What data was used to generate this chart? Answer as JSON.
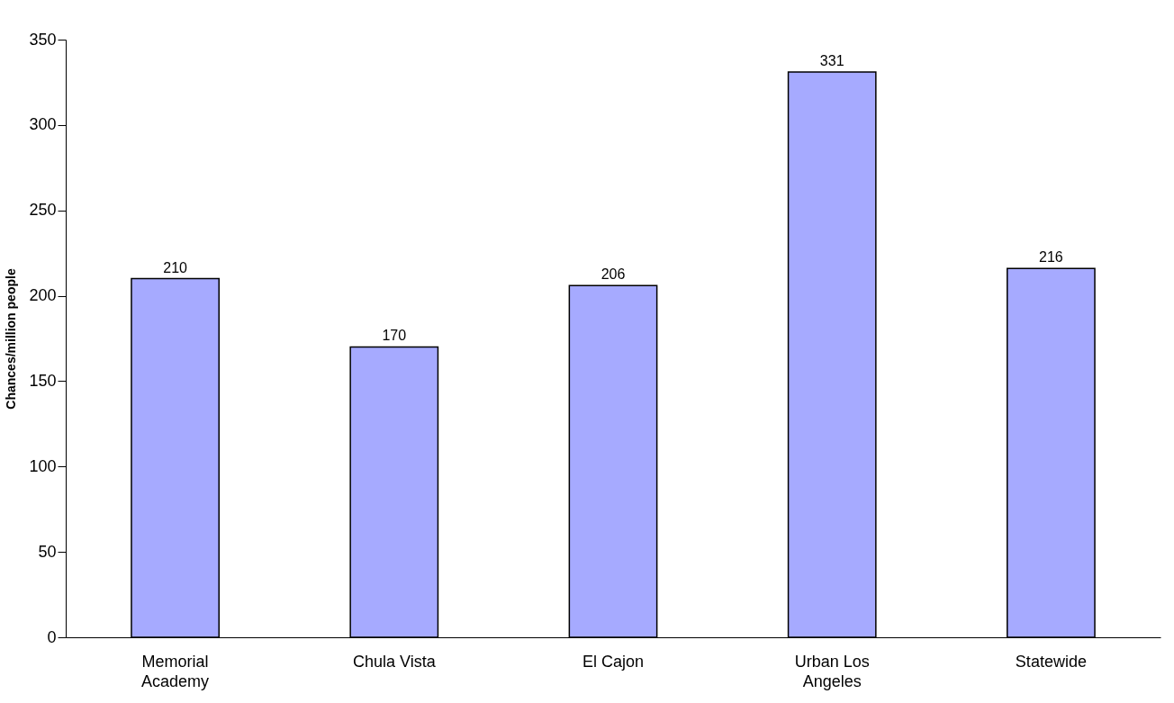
{
  "chart_data": {
    "type": "bar",
    "ylabel": "Chances/million people",
    "categories": [
      "Memorial Academy",
      "Chula Vista",
      "El Cajon",
      "Urban Los Angeles",
      "Statewide"
    ],
    "values": [
      210,
      170,
      206,
      331,
      216
    ],
    "color": "#a6aaff",
    "ylim": [
      0,
      350
    ],
    "yticks": [
      0,
      50,
      100,
      150,
      200,
      250,
      300,
      350
    ],
    "grid": false,
    "data_labels": true
  }
}
